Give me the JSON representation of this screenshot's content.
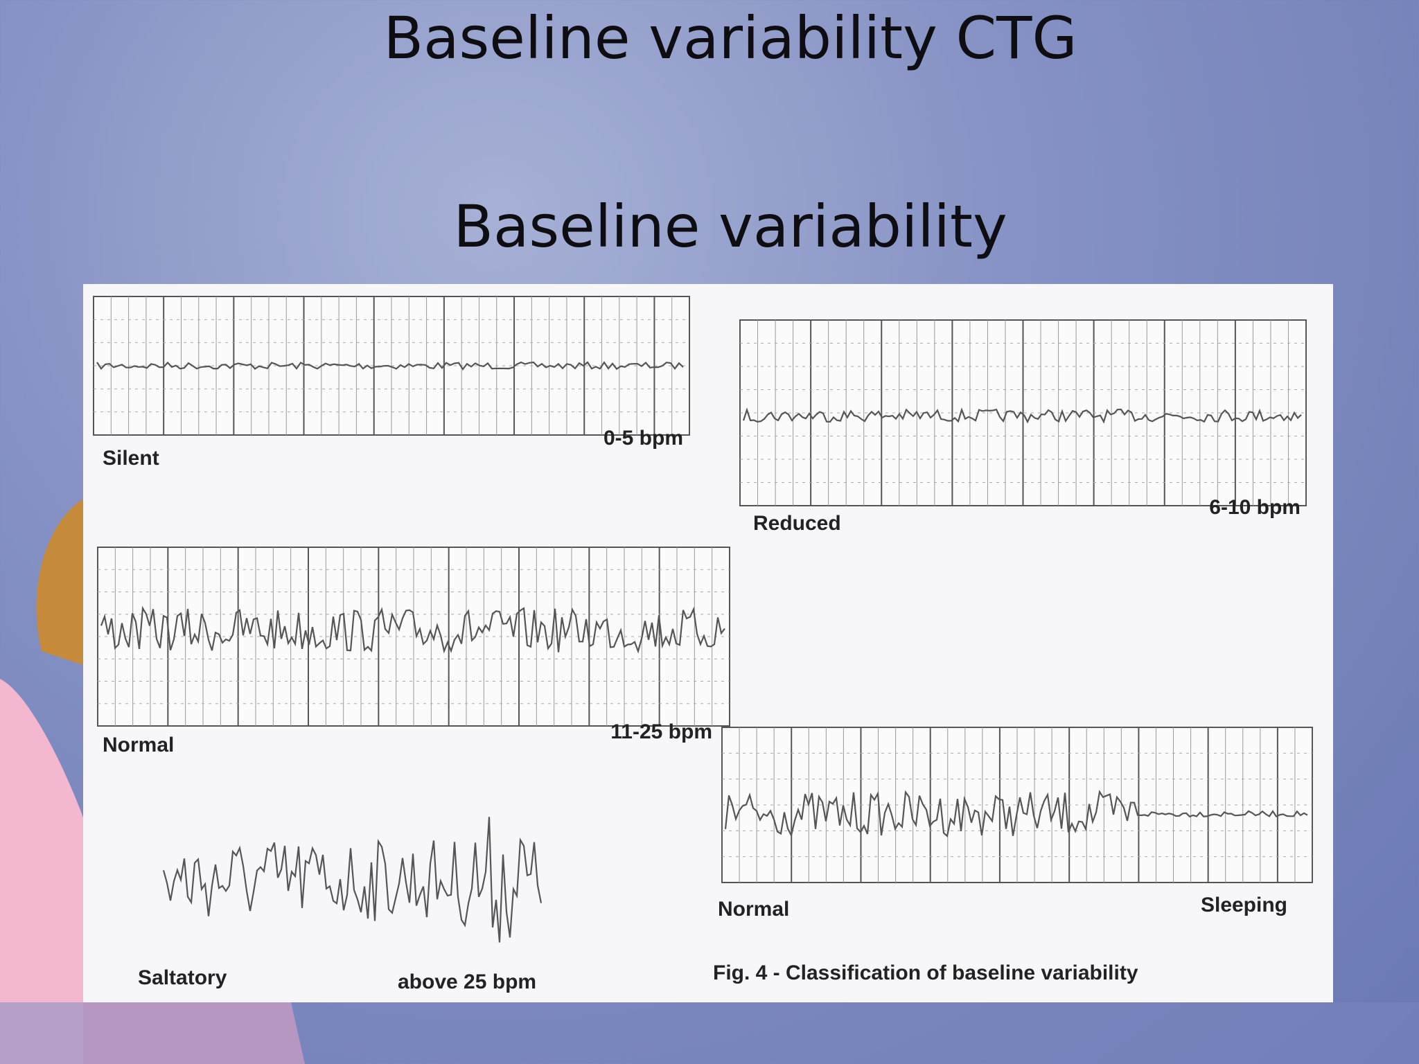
{
  "slide": {
    "title": "Baseline variability CTG",
    "subtitle": "Baseline variability"
  },
  "figure": {
    "panels": [
      {
        "name": "Silent",
        "range": "0-5 bpm"
      },
      {
        "name": "Reduced",
        "range": "6-10 bpm"
      },
      {
        "name": "Normal",
        "range": "11-25 bpm"
      },
      {
        "name": "Saltatory",
        "range": "above 25 bpm"
      },
      {
        "name": "Normal",
        "range": "Sleeping"
      }
    ],
    "caption": "Fig. 4 - Classification of baseline variability"
  }
}
